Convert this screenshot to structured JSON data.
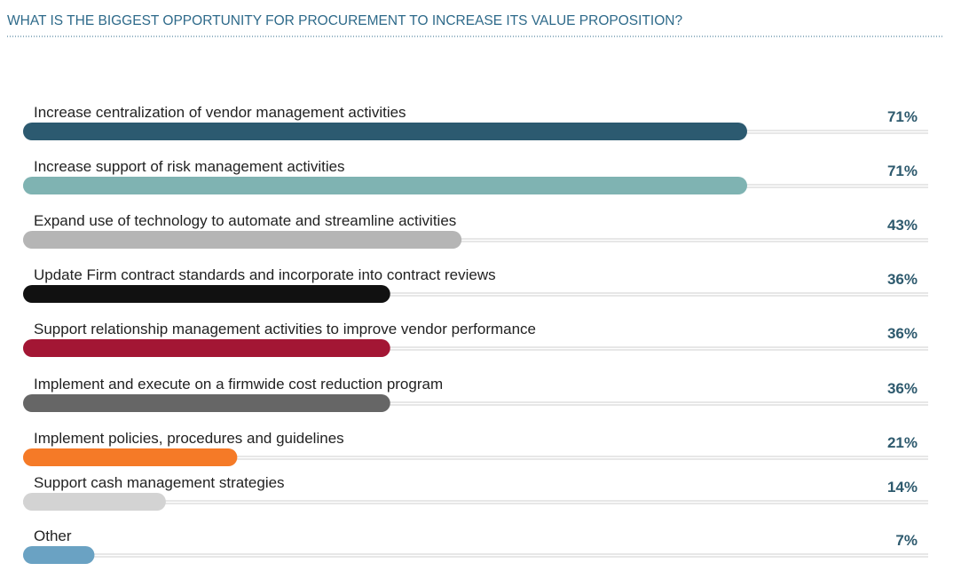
{
  "chart_data": {
    "type": "bar",
    "title": "WHAT IS THE BIGGEST OPPORTUNITY FOR PROCUREMENT TO INCREASE ITS VALUE PROPOSITION?",
    "categories": [
      "Increase centralization of vendor management activities",
      "Increase support of risk management activities",
      "Expand use of technology to automate and streamline activities",
      "Update Firm contract standards and incorporate into contract reviews",
      "Support relationship management activities to improve vendor performance",
      "Implement and execute on a firmwide cost reduction program",
      "Implement policies, procedures and guidelines",
      "Support cash management strategies",
      "Other"
    ],
    "values": [
      71,
      71,
      43,
      36,
      36,
      36,
      21,
      14,
      7
    ],
    "value_labels": [
      "71%",
      "71%",
      "43%",
      "36%",
      "36%",
      "36%",
      "21%",
      "14%",
      "7%"
    ],
    "colors": [
      "#2c5a70",
      "#7fb3b2",
      "#b5b5b5",
      "#111111",
      "#a31634",
      "#666666",
      "#f57a27",
      "#d3d3d3",
      "#6aa2c3"
    ]
  }
}
